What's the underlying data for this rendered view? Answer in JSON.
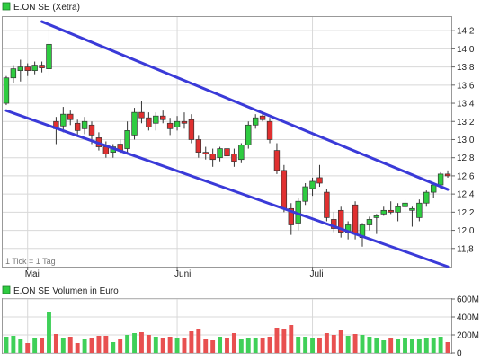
{
  "chart_data": [
    {
      "type": "candlestick",
      "legend": "E.ON SE (Xetra)",
      "y_ticks": [
        "14,2",
        "14,0",
        "13,8",
        "13,6",
        "13,4",
        "13,2",
        "13,0",
        "12,8",
        "12,6",
        "12,4",
        "12,2",
        "12,0",
        "11,8"
      ],
      "y_values": [
        14.2,
        14.0,
        13.8,
        13.6,
        13.4,
        13.2,
        13.0,
        12.8,
        12.6,
        12.4,
        12.2,
        12.0,
        11.8
      ],
      "ylim": [
        11.6,
        14.35
      ],
      "x_labels": [
        "Mai",
        "Juni",
        "Juli"
      ],
      "x_label_index": [
        3,
        24,
        43
      ],
      "note": "1 Tick = 1 Tag",
      "grid": true,
      "colors": {
        "up": "#2ecc40",
        "down": "#e03030",
        "channel": "#3a3ad8",
        "grid": "#d8d8d8"
      },
      "channel_upper": {
        "from": [
          5,
          14.3
        ],
        "to": [
          62,
          12.45
        ]
      },
      "channel_lower": {
        "from": [
          0,
          13.32
        ],
        "to": [
          62,
          11.6
        ]
      },
      "ohlc": [
        [
          13.4,
          13.7,
          13.38,
          13.68
        ],
        [
          13.68,
          13.82,
          13.62,
          13.78
        ],
        [
          13.76,
          13.88,
          13.64,
          13.8
        ],
        [
          13.8,
          13.84,
          13.7,
          13.76
        ],
        [
          13.76,
          13.86,
          13.72,
          13.82
        ],
        [
          13.82,
          13.86,
          13.74,
          13.79
        ],
        [
          13.78,
          14.29,
          13.7,
          14.05
        ],
        [
          13.2,
          13.25,
          12.95,
          13.12
        ],
        [
          13.15,
          13.36,
          13.08,
          13.28
        ],
        [
          13.28,
          13.32,
          13.16,
          13.22
        ],
        [
          13.18,
          13.22,
          13.05,
          13.1
        ],
        [
          13.12,
          13.25,
          13.06,
          13.2
        ],
        [
          13.16,
          13.2,
          12.95,
          13.05
        ],
        [
          13.02,
          13.08,
          12.88,
          12.92
        ],
        [
          12.92,
          12.98,
          12.8,
          12.84
        ],
        [
          12.86,
          12.95,
          12.8,
          12.92
        ],
        [
          12.95,
          13.0,
          12.85,
          12.88
        ],
        [
          12.9,
          13.2,
          12.86,
          13.1
        ],
        [
          13.05,
          13.35,
          13.0,
          13.3
        ],
        [
          13.3,
          13.42,
          13.18,
          13.24
        ],
        [
          13.24,
          13.3,
          13.1,
          13.14
        ],
        [
          13.18,
          13.3,
          13.1,
          13.26
        ],
        [
          13.26,
          13.32,
          13.18,
          13.22
        ],
        [
          13.18,
          13.24,
          13.05,
          13.12
        ],
        [
          13.14,
          13.26,
          13.1,
          13.2
        ],
        [
          13.2,
          13.3,
          13.12,
          13.18
        ],
        [
          13.22,
          13.28,
          12.96,
          13.0
        ],
        [
          13.0,
          13.05,
          12.8,
          12.86
        ],
        [
          12.86,
          12.92,
          12.78,
          12.84
        ],
        [
          12.84,
          12.9,
          12.7,
          12.78
        ],
        [
          12.8,
          12.92,
          12.76,
          12.9
        ],
        [
          12.9,
          12.95,
          12.78,
          12.82
        ],
        [
          12.84,
          12.9,
          12.7,
          12.76
        ],
        [
          12.78,
          12.96,
          12.74,
          12.94
        ],
        [
          12.94,
          13.2,
          12.9,
          13.16
        ],
        [
          13.16,
          13.28,
          13.12,
          13.24
        ],
        [
          13.26,
          13.3,
          13.2,
          13.22
        ],
        [
          13.2,
          13.24,
          12.96,
          13.0
        ],
        [
          12.88,
          12.96,
          12.62,
          12.66
        ],
        [
          12.66,
          12.72,
          12.2,
          12.24
        ],
        [
          12.24,
          12.3,
          11.95,
          12.06
        ],
        [
          12.08,
          12.36,
          12.0,
          12.32
        ],
        [
          12.32,
          12.52,
          12.28,
          12.48
        ],
        [
          12.46,
          12.58,
          12.38,
          12.54
        ],
        [
          12.58,
          12.72,
          12.48,
          12.52
        ],
        [
          12.42,
          12.46,
          12.1,
          12.14
        ],
        [
          12.12,
          12.2,
          11.98,
          12.02
        ],
        [
          12.22,
          12.26,
          11.92,
          11.98
        ],
        [
          11.98,
          12.1,
          11.9,
          12.06
        ],
        [
          12.28,
          12.32,
          11.9,
          11.96
        ],
        [
          11.92,
          12.08,
          11.82,
          12.06
        ],
        [
          12.06,
          12.15,
          12.0,
          12.12
        ],
        [
          12.14,
          12.18,
          11.96,
          12.16
        ],
        [
          12.18,
          12.26,
          12.16,
          12.22
        ],
        [
          12.22,
          12.32,
          12.18,
          12.2
        ],
        [
          12.2,
          12.3,
          12.1,
          12.26
        ],
        [
          12.26,
          12.34,
          12.2,
          12.3
        ],
        [
          12.22,
          12.26,
          12.04,
          12.24
        ],
        [
          12.14,
          12.34,
          12.1,
          12.3
        ],
        [
          12.3,
          12.44,
          12.26,
          12.42
        ],
        [
          12.42,
          12.52,
          12.36,
          12.5
        ],
        [
          12.5,
          12.64,
          12.46,
          12.62
        ],
        [
          12.62,
          12.66,
          12.58,
          12.6
        ]
      ]
    },
    {
      "type": "bar",
      "legend": "E.ON SE Volumen in Euro",
      "y_ticks": [
        "600M",
        "400M",
        "200M",
        "0"
      ],
      "y_values": [
        600,
        400,
        200,
        0
      ],
      "ylim": [
        0,
        600
      ],
      "colors": {
        "up": "#3fd058",
        "down": "#e85050"
      },
      "volume_m": [
        180,
        190,
        150,
        110,
        170,
        170,
        450,
        210,
        170,
        180,
        110,
        150,
        170,
        190,
        190,
        120,
        150,
        200,
        220,
        230,
        200,
        180,
        170,
        180,
        160,
        170,
        240,
        260,
        150,
        140,
        180,
        160,
        220,
        150,
        170,
        160,
        170,
        180,
        280,
        260,
        310,
        180,
        180,
        160,
        170,
        220,
        200,
        250,
        190,
        210,
        200,
        180,
        170,
        140,
        160,
        150,
        160,
        150,
        150,
        170,
        160,
        180,
        120
      ]
    }
  ]
}
